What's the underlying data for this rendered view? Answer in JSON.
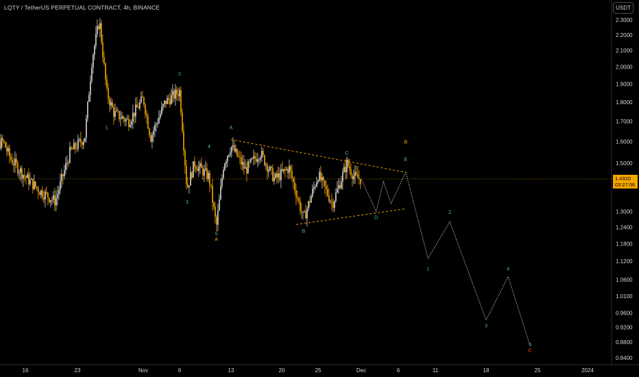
{
  "header": {
    "title": "LQTY / TetherUS PERPETUAL CONTRACT, 4h, BINANCE",
    "currency_button": "USDT"
  },
  "price_tag": {
    "price": "1.4320",
    "countdown": "03:27:56"
  },
  "colors": {
    "background": "#000000",
    "candle": "#d9d9d9",
    "candle_accent": "#f7a600",
    "wave_green": "#4db6ac",
    "wave_orange": "#f7a600",
    "wave_red": "#ff5722",
    "triangle_line": "#f7a600",
    "projection": "#b2b5be",
    "axis_text": "#d1d4dc"
  },
  "chart_data": {
    "type": "candlestick",
    "y_axis": {
      "scale": "log",
      "ylim": [
        0.82,
        2.36
      ],
      "tick_labels": [
        "2.3000",
        "2.2000",
        "2.1000",
        "2.0000",
        "1.9000",
        "1.8000",
        "1.7000",
        "1.6000",
        "1.5000",
        "1.4000",
        "1.3000",
        "1.2400",
        "1.1800",
        "1.1200",
        "1.0600",
        "1.0100",
        "0.9600",
        "0.9200",
        "0.8800",
        "0.8400"
      ]
    },
    "x_axis": {
      "tick_labels": [
        "16",
        "23",
        "Nov",
        "6",
        "13",
        "20",
        "25",
        "Dec",
        "6",
        "11",
        "18",
        "25",
        "2024"
      ]
    },
    "price_path": [
      [
        "Oct 10",
        1.45
      ],
      [
        "Oct 11",
        1.3
      ],
      [
        "Oct 12",
        1.58
      ],
      [
        "Oct 13",
        1.6
      ],
      [
        "Oct 14",
        1.52
      ],
      [
        "Oct 16",
        1.44
      ],
      [
        "Oct 18",
        1.38
      ],
      [
        "Oct 20",
        1.34
      ],
      [
        "Oct 22",
        1.55
      ],
      [
        "Oct 24",
        1.62
      ],
      [
        "Oct 25",
        2.05
      ],
      [
        "Oct 26",
        2.3
      ],
      [
        "Oct 27",
        1.85
      ],
      [
        "Oct 28",
        1.74
      ],
      [
        "Oct 30",
        1.7
      ],
      [
        "Nov 1",
        1.82
      ],
      [
        "Nov 2",
        1.62
      ],
      [
        "Nov 4",
        1.8
      ],
      [
        "Nov 6",
        1.86
      ],
      [
        "Nov 7",
        1.39
      ],
      [
        "Nov 8",
        1.5
      ],
      [
        "Nov 10",
        1.44
      ],
      [
        "Nov 11",
        1.24
      ],
      [
        "Nov 12",
        1.5
      ],
      [
        "Nov 13",
        1.58
      ],
      [
        "Nov 15",
        1.47
      ],
      [
        "Nov 17",
        1.55
      ],
      [
        "Nov 19",
        1.43
      ],
      [
        "Nov 21",
        1.48
      ],
      [
        "Nov 23",
        1.27
      ],
      [
        "Nov 25",
        1.45
      ],
      [
        "Nov 27",
        1.33
      ],
      [
        "Nov 29",
        1.5
      ],
      [
        "Nov 30",
        1.44
      ],
      [
        "Dec 1",
        1.43
      ]
    ],
    "projection_path": [
      [
        "Dec 1",
        1.43
      ],
      [
        "Dec 3",
        1.3
      ],
      [
        "Dec 4",
        1.42
      ],
      [
        "Dec 5",
        1.33
      ],
      [
        "Dec 7",
        1.46
      ],
      [
        "Dec 10",
        1.13
      ],
      [
        "Dec 13",
        1.26
      ],
      [
        "Dec 18",
        0.94
      ],
      [
        "Dec 21",
        1.07
      ],
      [
        "Dec 24",
        0.87
      ]
    ],
    "triangle": {
      "upper": [
        [
          "Nov 13",
          1.61
        ],
        [
          "Dec 7",
          1.46
        ]
      ],
      "lower": [
        [
          "Nov 22",
          1.25
        ],
        [
          "Dec 7",
          1.31
        ]
      ]
    },
    "wave_labels": [
      {
        "text": "1",
        "date": "Oct 27",
        "price": 1.66,
        "color": "green"
      },
      {
        "text": "2",
        "date": "Nov 6",
        "price": 1.95,
        "color": "green"
      },
      {
        "text": "3",
        "date": "Nov 7",
        "price": 1.33,
        "color": "green"
      },
      {
        "text": "4",
        "date": "Nov 10",
        "price": 1.57,
        "color": "green"
      },
      {
        "text": "5",
        "date": "Nov 11",
        "price": 1.21,
        "color": "green"
      },
      {
        "text": "A",
        "date": "Nov 11",
        "price": 1.19,
        "color": "orange"
      },
      {
        "text": "A",
        "date": "Nov 13",
        "price": 1.66,
        "color": "green"
      },
      {
        "text": "B",
        "date": "Nov 23",
        "price": 1.22,
        "color": "green"
      },
      {
        "text": "C",
        "date": "Nov 29",
        "price": 1.54,
        "color": "green"
      },
      {
        "text": "D",
        "date": "Dec 3",
        "price": 1.27,
        "color": "green"
      },
      {
        "text": "E",
        "date": "Dec 7",
        "price": 1.51,
        "color": "green"
      },
      {
        "text": "B",
        "date": "Dec 7",
        "price": 1.59,
        "color": "orange"
      },
      {
        "text": "1",
        "date": "Dec 10",
        "price": 1.09,
        "color": "green"
      },
      {
        "text": "2",
        "date": "Dec 13",
        "price": 1.29,
        "color": "green"
      },
      {
        "text": "3",
        "date": "Dec 18",
        "price": 0.92,
        "color": "green"
      },
      {
        "text": "4",
        "date": "Dec 21",
        "price": 1.09,
        "color": "green"
      },
      {
        "text": "5",
        "date": "Dec 24",
        "price": 0.87,
        "color": "green"
      },
      {
        "text": "C",
        "date": "Dec 24",
        "price": 0.855,
        "color": "red"
      }
    ]
  }
}
